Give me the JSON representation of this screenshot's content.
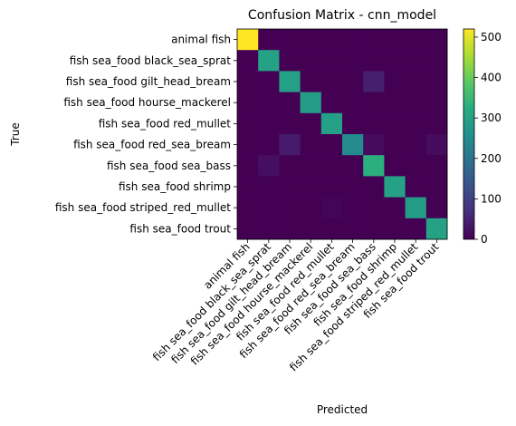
{
  "chart_data": {
    "type": "heatmap",
    "title": "Confusion Matrix - cnn_model",
    "xlabel": "Predicted",
    "ylabel": "True",
    "colormap": "viridis",
    "vmin": 0,
    "vmax": 520,
    "colorbar_ticks": [
      0,
      100,
      200,
      300,
      400,
      500
    ],
    "labels": [
      "animal fish",
      "fish sea_food black_sea_sprat",
      "fish sea_food gilt_head_bream",
      "fish sea_food hourse_mackerel",
      "fish sea_food red_mullet",
      "fish sea_food red_sea_bream",
      "fish sea_food sea_bass",
      "fish sea_food shrimp",
      "fish sea_food striped_red_mullet",
      "fish sea_food trout"
    ],
    "matrix": [
      [
        520,
        0,
        0,
        0,
        0,
        0,
        0,
        0,
        0,
        0
      ],
      [
        0,
        300,
        0,
        0,
        0,
        0,
        0,
        0,
        0,
        0
      ],
      [
        0,
        0,
        295,
        0,
        0,
        0,
        45,
        0,
        0,
        0
      ],
      [
        0,
        0,
        0,
        290,
        0,
        0,
        0,
        0,
        0,
        0
      ],
      [
        0,
        0,
        0,
        0,
        295,
        0,
        0,
        0,
        0,
        0
      ],
      [
        0,
        0,
        40,
        0,
        0,
        250,
        15,
        0,
        0,
        15
      ],
      [
        0,
        20,
        0,
        0,
        0,
        0,
        330,
        0,
        0,
        0
      ],
      [
        0,
        0,
        0,
        0,
        0,
        0,
        0,
        300,
        0,
        0
      ],
      [
        0,
        0,
        0,
        0,
        5,
        0,
        0,
        0,
        290,
        0
      ],
      [
        0,
        0,
        0,
        0,
        0,
        0,
        0,
        0,
        0,
        300
      ]
    ]
  }
}
